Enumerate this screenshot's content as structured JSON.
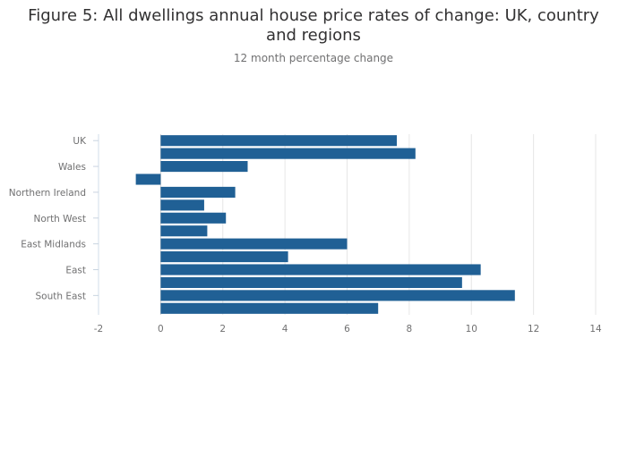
{
  "chart_data": {
    "type": "bar",
    "orientation": "horizontal",
    "title": "Figure 5: All dwellings annual house price rates of change: UK, country and regions",
    "subtitle": "12 month percentage change",
    "xlabel": "",
    "ylabel": "",
    "xlim": [
      -2,
      14
    ],
    "xticks": [
      -2,
      0,
      2,
      4,
      6,
      8,
      10,
      12,
      14
    ],
    "grid": true,
    "legend": "none",
    "categories": [
      "UK",
      "",
      "Wales",
      "",
      "Northern Ireland",
      "",
      "North West",
      "",
      "East Midlands",
      "",
      "East",
      "",
      "South East",
      ""
    ],
    "values": [
      7.6,
      8.2,
      2.8,
      -0.8,
      2.4,
      1.4,
      2.1,
      1.5,
      6.0,
      4.1,
      10.3,
      9.7,
      11.4,
      7.0
    ],
    "bar_color": "#206095"
  }
}
